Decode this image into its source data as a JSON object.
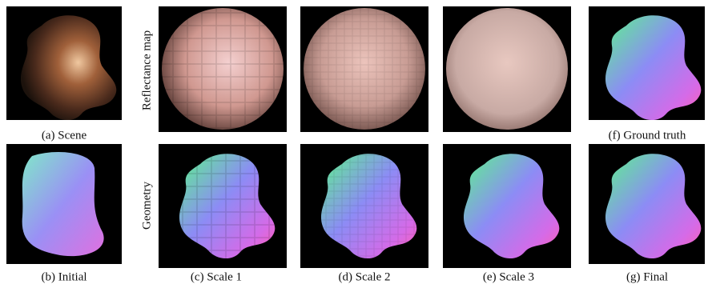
{
  "row_labels": [
    "Reflectance map",
    "Geometry"
  ],
  "captions": {
    "a": "(a) Scene",
    "b": "(b) Initial",
    "c": "(c) Scale 1",
    "d": "(d) Scale 2",
    "e": "(e) Scale 3",
    "f": "(f) Ground truth",
    "g": "(g) Final"
  }
}
